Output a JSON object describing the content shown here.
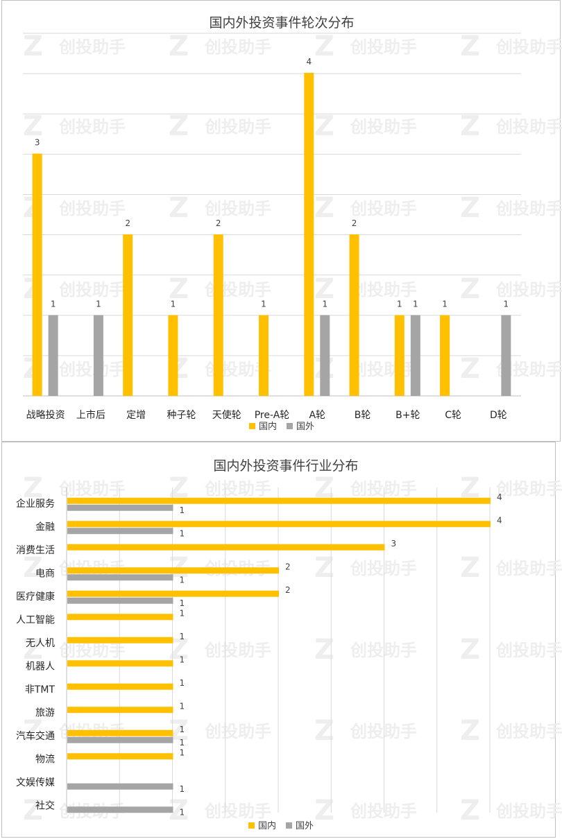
{
  "colors": {
    "domestic": "#FFC000",
    "foreign": "#A5A5A5",
    "grid": "#D9D9D9",
    "axis": "#BFBFBF"
  },
  "watermark": {
    "text": "创投助手",
    "mark": "Z"
  },
  "chart_data": [
    {
      "type": "bar",
      "orientation": "vertical",
      "title": "国内外投资事件轮次分布",
      "categories": [
        "战略投资",
        "上市后",
        "定增",
        "种子轮",
        "天使轮",
        "Pre-A轮",
        "A轮",
        "B轮",
        "B+轮",
        "C轮",
        "D轮"
      ],
      "series": [
        {
          "name": "国内",
          "values": [
            3,
            null,
            2,
            1,
            2,
            1,
            4,
            2,
            1,
            1,
            null
          ]
        },
        {
          "name": "国外",
          "values": [
            1,
            1,
            null,
            null,
            null,
            null,
            1,
            null,
            1,
            null,
            1
          ]
        }
      ],
      "ylim": [
        0,
        4
      ],
      "grid": true,
      "legend": "bottom"
    },
    {
      "type": "bar",
      "orientation": "horizontal",
      "title": "国内外投资事件行业分布",
      "categories": [
        "企业服务",
        "金融",
        "消费生活",
        "电商",
        "医疗健康",
        "人工智能",
        "无人机",
        "机器人",
        "非TMT",
        "旅游",
        "汽车交通",
        "物流",
        "文娱传媒",
        "社交"
      ],
      "series": [
        {
          "name": "国内",
          "values": [
            4,
            4,
            3,
            2,
            2,
            1,
            1,
            1,
            1,
            1,
            1,
            1,
            null,
            null
          ]
        },
        {
          "name": "国外",
          "values": [
            1,
            1,
            null,
            1,
            1,
            null,
            null,
            null,
            null,
            null,
            1,
            null,
            1,
            1
          ]
        }
      ],
      "xlim": [
        0,
        4
      ],
      "grid": true,
      "legend": "bottom"
    }
  ]
}
